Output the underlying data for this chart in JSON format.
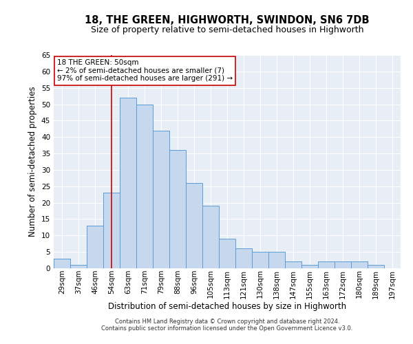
{
  "title": "18, THE GREEN, HIGHWORTH, SWINDON, SN6 7DB",
  "subtitle": "Size of property relative to semi-detached houses in Highworth",
  "xlabel": "Distribution of semi-detached houses by size in Highworth",
  "ylabel": "Number of semi-detached properties",
  "footnote1": "Contains HM Land Registry data © Crown copyright and database right 2024.",
  "footnote2": "Contains public sector information licensed under the Open Government Licence v3.0.",
  "categories": [
    "29sqm",
    "37sqm",
    "46sqm",
    "54sqm",
    "63sqm",
    "71sqm",
    "79sqm",
    "88sqm",
    "96sqm",
    "105sqm",
    "113sqm",
    "121sqm",
    "130sqm",
    "138sqm",
    "147sqm",
    "155sqm",
    "163sqm",
    "172sqm",
    "180sqm",
    "189sqm",
    "197sqm"
  ],
  "values": [
    3,
    1,
    13,
    23,
    52,
    50,
    42,
    36,
    26,
    19,
    9,
    6,
    5,
    5,
    2,
    1,
    2,
    2,
    2,
    1,
    0
  ],
  "bar_color": "#c5d8ed",
  "bar_edge_color": "#5b9bd5",
  "vline_x": 3.0,
  "vline_color": "#cc0000",
  "annotation_line1": "18 THE GREEN: 50sqm",
  "annotation_line2": "← 2% of semi-detached houses are smaller (7)",
  "annotation_line3": "97% of semi-detached houses are larger (291) →",
  "annotation_box_color": "#ffffff",
  "annotation_box_edge": "#cc0000",
  "ylim": [
    0,
    65
  ],
  "yticks": [
    0,
    5,
    10,
    15,
    20,
    25,
    30,
    35,
    40,
    45,
    50,
    55,
    60,
    65
  ],
  "background_color": "#e8eef6",
  "title_fontsize": 10.5,
  "subtitle_fontsize": 9,
  "ylabel_fontsize": 8.5,
  "xlabel_fontsize": 8.5,
  "tick_fontsize": 7.5,
  "annotation_fontsize": 7.5,
  "footnote_fontsize": 6.0
}
